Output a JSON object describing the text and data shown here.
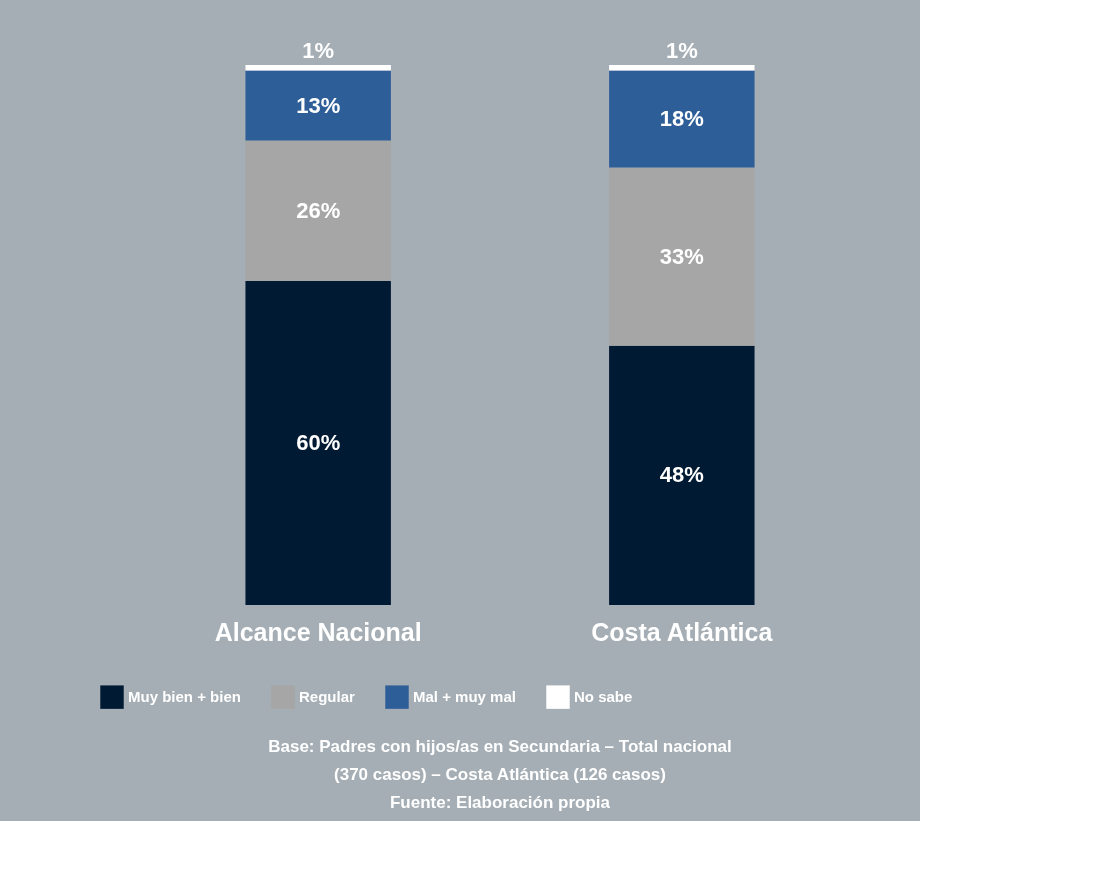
{
  "chart_data": {
    "type": "bar",
    "stacked": true,
    "legend": "bottom",
    "categories": [
      "Alcance Nacional",
      "Costa Atlántica"
    ],
    "series": [
      {
        "name": "Muy bien + bien",
        "color": "#001a33",
        "values": [
          60,
          48
        ],
        "value_labels": [
          "60%",
          "48%"
        ]
      },
      {
        "name": "Regular",
        "color": "#a6a6a6",
        "values": [
          26,
          33
        ],
        "value_labels": [
          "26%",
          "33%"
        ]
      },
      {
        "name": "Mal + muy mal",
        "color": "#2e5e98",
        "values": [
          13,
          18
        ],
        "value_labels": [
          "13%",
          "18%"
        ]
      },
      {
        "name": "No sabe",
        "color": "#ffffff",
        "values": [
          1,
          1
        ],
        "value_labels": [
          "1%",
          "1%"
        ]
      }
    ],
    "annotations": [
      "Base: Padres con hijos/as en Secundaria – Total nacional",
      "(370 casos) – Costa Atlántica (126 casos)",
      "Fuente: Elaboración propia"
    ]
  }
}
